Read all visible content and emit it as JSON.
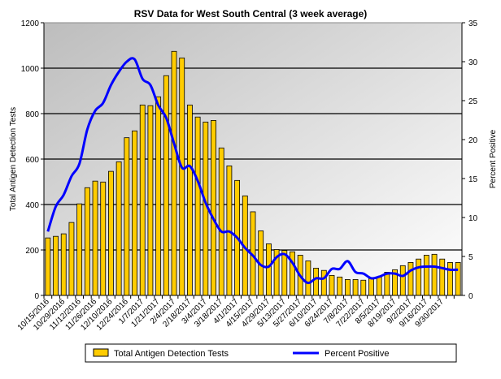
{
  "chart_data": {
    "type": "bar+line",
    "title": "RSV Data for West South Central (3 week average)",
    "ylabel": "Total Antigen Detection Tests",
    "y2label": "Percent Positive",
    "ylim": [
      0,
      1200
    ],
    "yticks": [
      0,
      200,
      400,
      600,
      800,
      1000,
      1200
    ],
    "y2lim": [
      0,
      35
    ],
    "y2ticks": [
      0,
      5,
      10,
      15,
      20,
      25,
      30,
      35
    ],
    "grid": true,
    "legend_position": "bottom",
    "x_tick_labels": [
      "10/15/2016",
      "10/29/2016",
      "11/12/2016",
      "11/26/2016",
      "12/10/2016",
      "12/24/2016",
      "1/7/2017",
      "1/21/2017",
      "2/4/2017",
      "2/18/2017",
      "3/4/2017",
      "3/18/2017",
      "4/1/2017",
      "4/15/2017",
      "4/29/2017",
      "5/13/2017",
      "5/27/2017",
      "6/10/2017",
      "6/24/2017",
      "7/8/2017",
      "7/22/2017",
      "8/5/2017",
      "8/19/2017",
      "9/2/2017",
      "9/16/2017",
      "9/30/2017"
    ],
    "series": [
      {
        "name": "Total Antigen Detection Tests",
        "type": "bar",
        "axis": "left",
        "color": "#FFCC00",
        "values": [
          253,
          260,
          271,
          321,
          403,
          474,
          503,
          499,
          546,
          588,
          694,
          724,
          838,
          835,
          874,
          967,
          1074,
          1045,
          838,
          785,
          763,
          770,
          649,
          570,
          506,
          438,
          368,
          284,
          227,
          202,
          198,
          192,
          177,
          152,
          120,
          110,
          88,
          81,
          70,
          70,
          67,
          74,
          81,
          102,
          113,
          131,
          145,
          160,
          177,
          181,
          160,
          145,
          145
        ]
      },
      {
        "name": "Percent Positive",
        "type": "line",
        "axis": "right",
        "color": "#0000FF",
        "values": [
          8.2,
          11.4,
          12.9,
          15.3,
          16.9,
          21.3,
          23.7,
          24.7,
          27.0,
          28.7,
          30.0,
          30.3,
          27.8,
          27.0,
          24.4,
          22.8,
          19.5,
          16.4,
          16.6,
          14.7,
          11.9,
          9.8,
          8.2,
          8.2,
          7.4,
          6.1,
          5.1,
          3.9,
          3.7,
          4.9,
          5.3,
          4.2,
          2.5,
          1.6,
          2.2,
          2.2,
          3.4,
          3.4,
          4.4,
          3.0,
          2.8,
          2.2,
          2.4,
          2.8,
          2.8,
          2.5,
          3.2,
          3.6,
          3.7,
          3.7,
          3.5,
          3.3,
          3.3
        ]
      }
    ]
  }
}
